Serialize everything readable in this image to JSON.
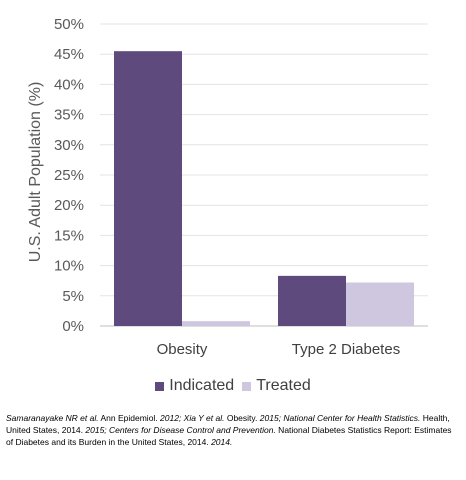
{
  "chart_data": {
    "type": "bar",
    "title": "",
    "xlabel": "",
    "ylabel": "U.S. Adult Population (%)",
    "ylim": [
      0,
      50
    ],
    "yticks": [
      "0%",
      "5%",
      "10%",
      "15%",
      "20%",
      "25%",
      "30%",
      "35%",
      "40%",
      "45%",
      "50%"
    ],
    "grid": true,
    "legend": "bottom",
    "categories": [
      "Obesity",
      "Type 2 Diabetes"
    ],
    "series": [
      {
        "name": "Indicated",
        "values": [
          45.5,
          8.3
        ],
        "color": "#5e4a7d"
      },
      {
        "name": "Treated",
        "values": [
          0.8,
          7.2
        ],
        "color": "#cfc6df"
      }
    ]
  },
  "citation": {
    "segments": [
      {
        "text": "Samaranayake NR et al.",
        "italic": true
      },
      {
        "text": " Ann Epidemiol. ",
        "italic": false
      },
      {
        "text": "2012; Xia Y et al.",
        "italic": true
      },
      {
        "text": " Obesity. ",
        "italic": false
      },
      {
        "text": "2015; National Center for Health Statistics.",
        "italic": true
      },
      {
        "text": " Health, United States, 2014. ",
        "italic": false
      },
      {
        "text": "2015; Centers for Disease Control and Prevention.",
        "italic": true
      },
      {
        "text": " National Diabetes Statistics Report: Estimates of Diabetes and its Burden in the United States, 2014. ",
        "italic": false
      },
      {
        "text": "2014.",
        "italic": true
      }
    ]
  }
}
